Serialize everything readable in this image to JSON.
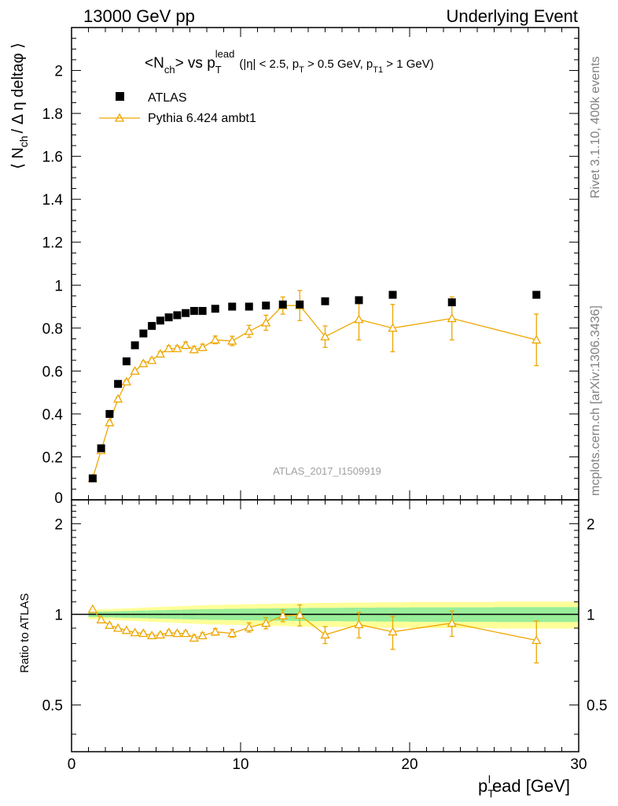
{
  "header": {
    "left": "13000 GeV pp",
    "right": "Underlying Event"
  },
  "side_labels": {
    "rivet": "Rivet 3.1.10,  400k events",
    "mcplots": "mcplots.cern.ch [arXiv:1306.3436]"
  },
  "watermark": "ATLAS_2017_I1509919",
  "colors": {
    "data": "#000000",
    "mc": "#eea600",
    "band_yellow": "#ffff99",
    "band_green": "#99ee99"
  },
  "chart_data": [
    {
      "type": "scatter",
      "title": {
        "part1": "<N",
        "sub1": "ch",
        "part2": "> vs p",
        "sub2": "T",
        "sup2": "lead",
        "part3": "(|η| < 2.5, p",
        "sub3": "T",
        "part4": " > 0.5 GeV, p",
        "sub4": "T1",
        "part5": " > 1 GeV)"
      },
      "ylabel": {
        "part1": "⟨ N",
        "sub1": "ch",
        "part2": "/ Δ η deltaφ ⟩"
      },
      "xlim": [
        0,
        30
      ],
      "ylim": [
        0,
        2.2
      ],
      "yticks": [
        "0.2",
        "0.4",
        "0.6",
        "0.8",
        "1",
        "1.2",
        "1.4",
        "1.6",
        "1.8",
        "2"
      ],
      "ytick_zero": "0",
      "legend": {
        "position": "top-left",
        "entries": [
          "ATLAS",
          "Pythia 6.424 ambt1"
        ]
      },
      "series": [
        {
          "name": "ATLAS",
          "x": [
            1.25,
            1.75,
            2.25,
            2.75,
            3.25,
            3.75,
            4.25,
            4.75,
            5.25,
            5.75,
            6.25,
            6.75,
            7.25,
            7.75,
            8.5,
            9.5,
            10.5,
            11.5,
            12.5,
            13.5,
            15,
            17,
            19,
            22.5,
            27.5
          ],
          "y": [
            0.1,
            0.24,
            0.4,
            0.54,
            0.645,
            0.72,
            0.775,
            0.81,
            0.835,
            0.85,
            0.86,
            0.87,
            0.88,
            0.88,
            0.89,
            0.9,
            0.9,
            0.905,
            0.91,
            0.91,
            0.925,
            0.93,
            0.955,
            0.92,
            0.955
          ]
        },
        {
          "name": "Pythia 6.424 ambt1",
          "x": [
            1.25,
            1.75,
            2.25,
            2.75,
            3.25,
            3.75,
            4.25,
            4.75,
            5.25,
            5.75,
            6.25,
            6.75,
            7.25,
            7.75,
            8.5,
            9.5,
            10.5,
            11.5,
            12.5,
            13.5,
            15,
            17,
            19,
            22.5,
            27.5
          ],
          "y": [
            0.1,
            0.23,
            0.36,
            0.47,
            0.55,
            0.6,
            0.635,
            0.65,
            0.68,
            0.705,
            0.705,
            0.72,
            0.7,
            0.71,
            0.745,
            0.74,
            0.785,
            0.825,
            0.905,
            0.905,
            0.76,
            0.84,
            0.8,
            0.845,
            0.745
          ],
          "err": [
            0.004,
            0.006,
            0.008,
            0.008,
            0.008,
            0.008,
            0.01,
            0.01,
            0.01,
            0.012,
            0.012,
            0.015,
            0.015,
            0.015,
            0.018,
            0.022,
            0.028,
            0.035,
            0.04,
            0.07,
            0.05,
            0.095,
            0.11,
            0.1,
            0.12
          ]
        }
      ]
    },
    {
      "type": "scatter",
      "ylabel": "Ratio to ATLAS",
      "xlabel": {
        "part1": "p",
        "sub1": "T",
        "sup1": "l",
        "part2": "ead [GeV]"
      },
      "xlim": [
        0,
        30
      ],
      "ylim": [
        0.35,
        2.4
      ],
      "xticks": [
        "0",
        "10",
        "20",
        "30"
      ],
      "yticks": [
        "0.5",
        "1",
        "2"
      ],
      "reference": 1.0,
      "series": [
        {
          "name": "Pythia 6.424 ambt1",
          "x": [
            1.25,
            1.75,
            2.25,
            2.75,
            3.25,
            3.75,
            4.25,
            4.75,
            5.25,
            5.75,
            6.25,
            6.75,
            7.25,
            7.75,
            8.5,
            9.5,
            10.5,
            11.5,
            12.5,
            13.5,
            15,
            17,
            19,
            22.5,
            27.5
          ],
          "y": [
            1.04,
            0.96,
            0.92,
            0.9,
            0.885,
            0.87,
            0.865,
            0.85,
            0.855,
            0.87,
            0.865,
            0.865,
            0.835,
            0.85,
            0.875,
            0.865,
            0.905,
            0.935,
            0.99,
            0.995,
            0.855,
            0.925,
            0.875,
            0.935,
            0.82
          ],
          "err": [
            0.01,
            0.01,
            0.012,
            0.01,
            0.01,
            0.01,
            0.012,
            0.012,
            0.012,
            0.014,
            0.014,
            0.016,
            0.018,
            0.018,
            0.022,
            0.026,
            0.032,
            0.04,
            0.045,
            0.08,
            0.055,
            0.09,
            0.11,
            0.09,
            0.13
          ]
        }
      ]
    }
  ]
}
